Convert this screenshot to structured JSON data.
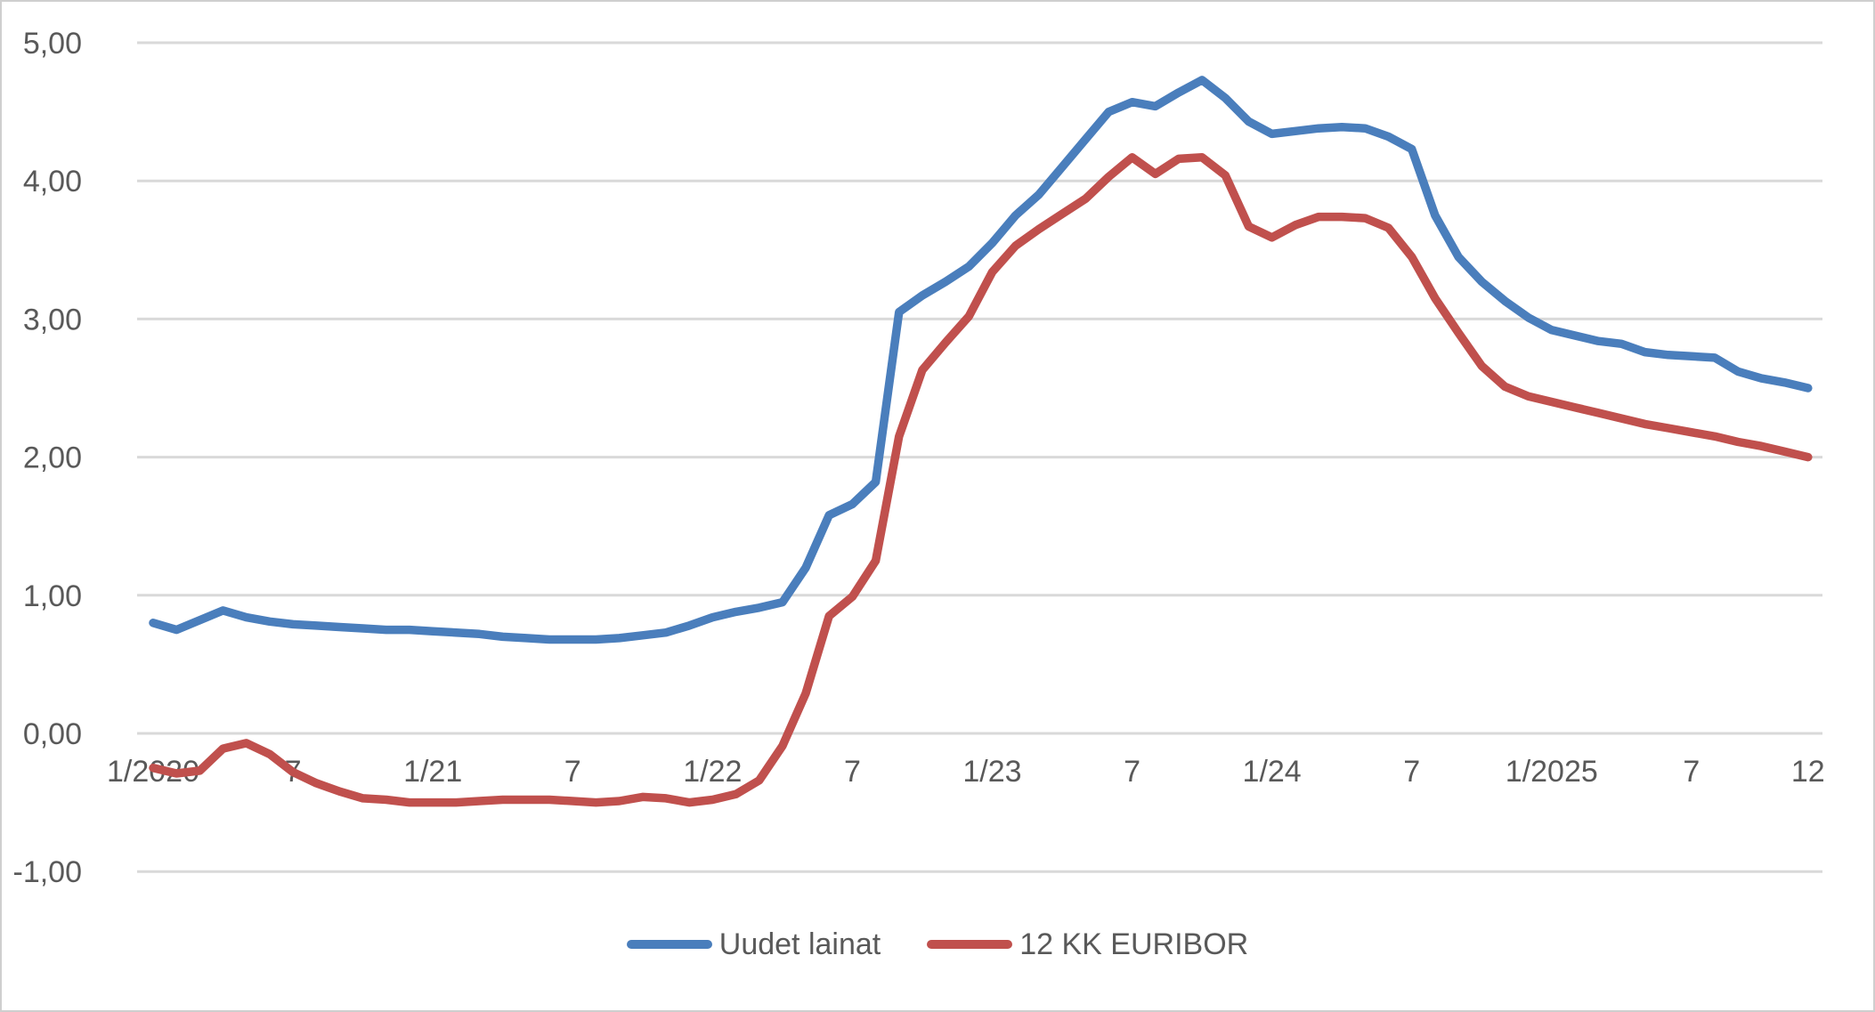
{
  "chart_data": {
    "type": "line",
    "title": "",
    "xlabel": "",
    "ylabel": "",
    "grid": true,
    "legend_position": "bottom",
    "ylim": [
      -1.0,
      5.0
    ],
    "ytick_values": [
      5,
      4,
      3,
      2,
      1,
      0,
      -1
    ],
    "ytick_labels": [
      "5,00",
      "4,00",
      "3,00",
      "2,00",
      "1,00",
      "0,00",
      "-1,00"
    ],
    "xticks": [
      {
        "month_index": 0,
        "label": "1/2020"
      },
      {
        "month_index": 6,
        "label": "7"
      },
      {
        "month_index": 12,
        "label": "1/21"
      },
      {
        "month_index": 18,
        "label": "7"
      },
      {
        "month_index": 24,
        "label": "1/22"
      },
      {
        "month_index": 30,
        "label": "7"
      },
      {
        "month_index": 36,
        "label": "1/23"
      },
      {
        "month_index": 42,
        "label": "7"
      },
      {
        "month_index": 48,
        "label": "1/24"
      },
      {
        "month_index": 54,
        "label": "7"
      },
      {
        "month_index": 60,
        "label": "1/2025"
      },
      {
        "month_index": 66,
        "label": "7"
      },
      {
        "month_index": 71,
        "label": "12"
      }
    ],
    "x_months": [
      "1/2020",
      "2/2020",
      "3/2020",
      "4/2020",
      "5/2020",
      "6/2020",
      "7/2020",
      "8/2020",
      "9/2020",
      "10/2020",
      "11/2020",
      "12/2020",
      "1/2021",
      "2/2021",
      "3/2021",
      "4/2021",
      "5/2021",
      "6/2021",
      "7/2021",
      "8/2021",
      "9/2021",
      "10/2021",
      "11/2021",
      "12/2021",
      "1/2022",
      "2/2022",
      "3/2022",
      "4/2022",
      "5/2022",
      "6/2022",
      "7/2022",
      "8/2022",
      "9/2022",
      "10/2022",
      "11/2022",
      "12/2022",
      "1/2023",
      "2/2023",
      "3/2023",
      "4/2023",
      "5/2023",
      "6/2023",
      "7/2023",
      "8/2023",
      "9/2023",
      "10/2023",
      "11/2023",
      "12/2023",
      "1/2024",
      "2/2024",
      "3/2024",
      "4/2024",
      "5/2024",
      "6/2024",
      "7/2024",
      "8/2024",
      "9/2024",
      "10/2024",
      "11/2024",
      "12/2024",
      "1/2025",
      "2/2025",
      "3/2025",
      "4/2025",
      "5/2025",
      "6/2025",
      "7/2025",
      "8/2025",
      "9/2025",
      "10/2025",
      "11/2025",
      "12/2025"
    ],
    "series": [
      {
        "name": "Uudet lainat",
        "color": "#4a7ebc",
        "values": [
          0.8,
          0.75,
          0.82,
          0.89,
          0.84,
          0.81,
          0.79,
          0.78,
          0.77,
          0.76,
          0.75,
          0.75,
          0.74,
          0.73,
          0.72,
          0.7,
          0.69,
          0.68,
          0.68,
          0.68,
          0.69,
          0.71,
          0.73,
          0.78,
          0.84,
          0.88,
          0.91,
          0.95,
          1.2,
          1.58,
          1.66,
          1.82,
          3.05,
          3.17,
          3.27,
          3.38,
          3.55,
          3.75,
          3.9,
          4.1,
          4.3,
          4.5,
          4.57,
          4.54,
          4.64,
          4.73,
          4.6,
          4.43,
          4.34,
          4.36,
          4.38,
          4.39,
          4.38,
          4.32,
          4.23,
          3.75,
          3.45,
          3.27,
          3.13,
          3.01,
          2.92,
          2.88,
          2.84,
          2.82,
          2.76,
          2.74,
          2.73,
          2.72,
          2.62,
          2.57,
          2.54,
          2.5
        ]
      },
      {
        "name": "12 KK EURIBOR",
        "color": "#c0504d",
        "values": [
          -0.25,
          -0.29,
          -0.27,
          -0.11,
          -0.07,
          -0.15,
          -0.28,
          -0.36,
          -0.42,
          -0.47,
          -0.48,
          -0.5,
          -0.5,
          -0.5,
          -0.49,
          -0.48,
          -0.48,
          -0.48,
          -0.49,
          -0.5,
          -0.49,
          -0.46,
          -0.47,
          -0.5,
          -0.48,
          -0.44,
          -0.34,
          -0.09,
          0.29,
          0.85,
          0.99,
          1.25,
          2.15,
          2.63,
          2.83,
          3.02,
          3.34,
          3.53,
          3.65,
          3.76,
          3.87,
          4.03,
          4.17,
          4.05,
          4.16,
          4.17,
          4.04,
          3.67,
          3.59,
          3.68,
          3.74,
          3.74,
          3.73,
          3.66,
          3.45,
          3.15,
          2.9,
          2.66,
          2.51,
          2.44,
          2.4,
          2.36,
          2.32,
          2.28,
          2.24,
          2.21,
          2.18,
          2.15,
          2.11,
          2.08,
          2.04,
          2.0
        ]
      }
    ],
    "legend": [
      {
        "label": "Uudet lainat",
        "color": "#4a7ebc"
      },
      {
        "label": "12 KK EURIBOR",
        "color": "#c0504d"
      }
    ]
  }
}
